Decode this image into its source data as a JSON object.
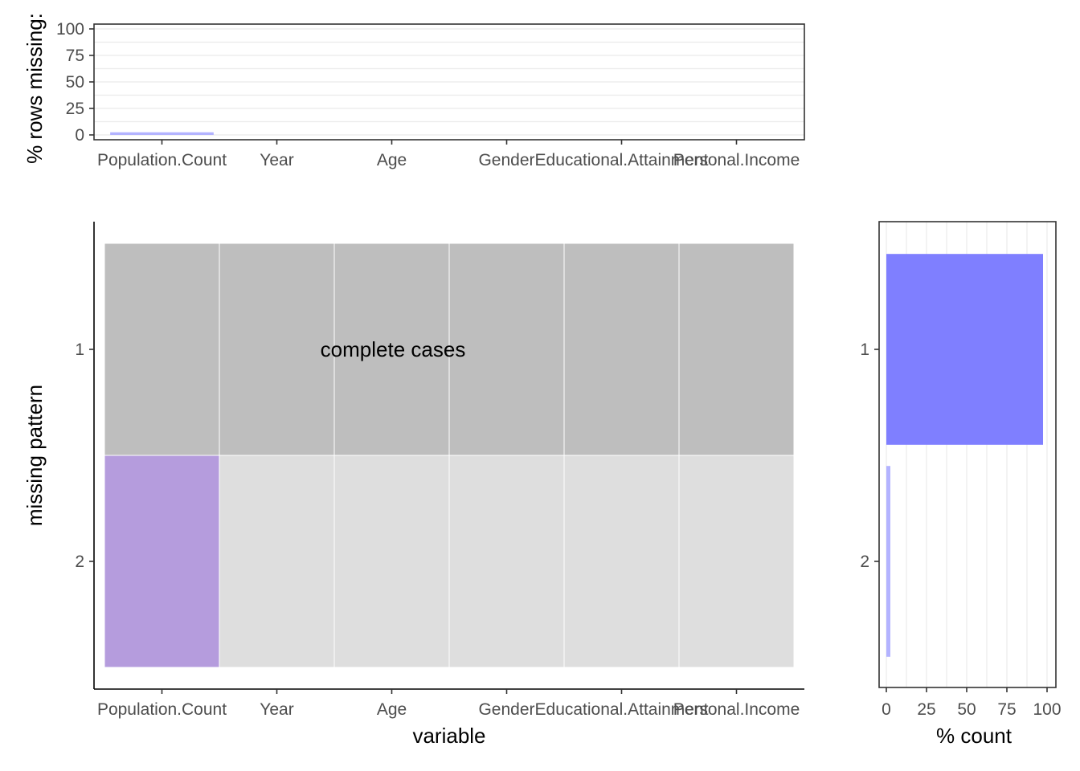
{
  "colors": {
    "complete_pattern": "#bebebe",
    "observed_cell": "#dedede",
    "missing_cell": "#b59cdd",
    "pattern_bar_complete": "#7f7fff",
    "pattern_bar_other": "#b3b3ff",
    "column_bar": "#b3b3ff"
  },
  "chart_data": [
    {
      "id": "missing_by_variable",
      "type": "bar",
      "categories": [
        "Population.Count",
        "Year",
        "Age",
        "Gender",
        "Educational.Attainment",
        "Personal.Income"
      ],
      "values": [
        2.5,
        0,
        0,
        0,
        0,
        0
      ],
      "ylabel": "% rows missing:",
      "ylim": [
        0,
        100
      ],
      "yticks": [
        0,
        25,
        50,
        75,
        100
      ],
      "grid": true
    },
    {
      "id": "missing_patterns",
      "type": "heatmap",
      "x": [
        "Population.Count",
        "Year",
        "Age",
        "Gender",
        "Educational.Attainment",
        "Personal.Income"
      ],
      "y": [
        "1",
        "2"
      ],
      "missing": [
        [
          0,
          0,
          0,
          0,
          0,
          0
        ],
        [
          1,
          0,
          0,
          0,
          0,
          0
        ]
      ],
      "xlabel": "variable",
      "ylabel": "missing pattern",
      "annotation": {
        "row": "1",
        "text": "complete cases"
      }
    },
    {
      "id": "pattern_counts",
      "type": "bar",
      "orientation": "horizontal",
      "categories": [
        "1",
        "2"
      ],
      "values": [
        97.5,
        2.5
      ],
      "xlabel": "% count",
      "xlim": [
        0,
        100
      ],
      "xticks": [
        0,
        25,
        50,
        75,
        100
      ],
      "grid": true
    }
  ]
}
